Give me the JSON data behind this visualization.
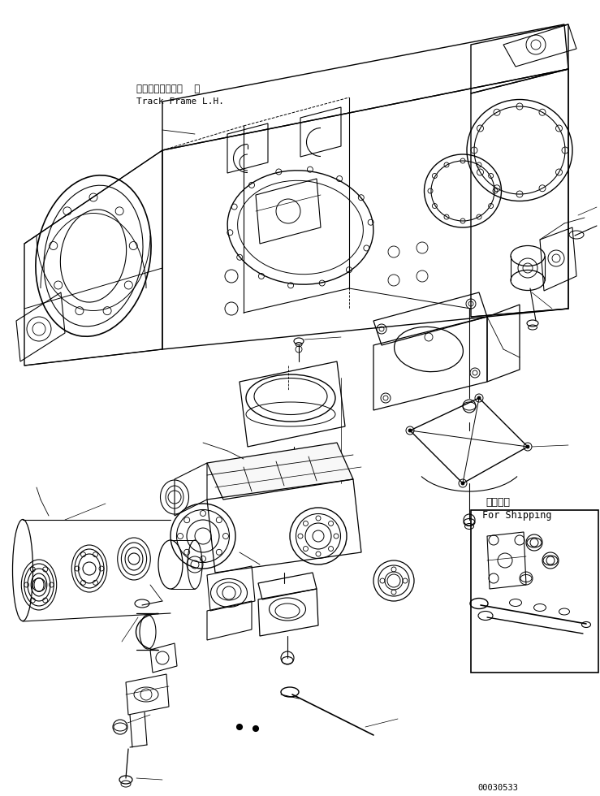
{
  "background_color": "#ffffff",
  "line_color": "#000000",
  "label_japanese": "トラックフレーム  左",
  "label_english": "Track Frame L.H.",
  "shipping_japanese": "運斐部品",
  "shipping_english": "For Shipping",
  "part_number": "00030533",
  "fig_width": 7.39,
  "fig_height": 9.8,
  "dpi": 100
}
